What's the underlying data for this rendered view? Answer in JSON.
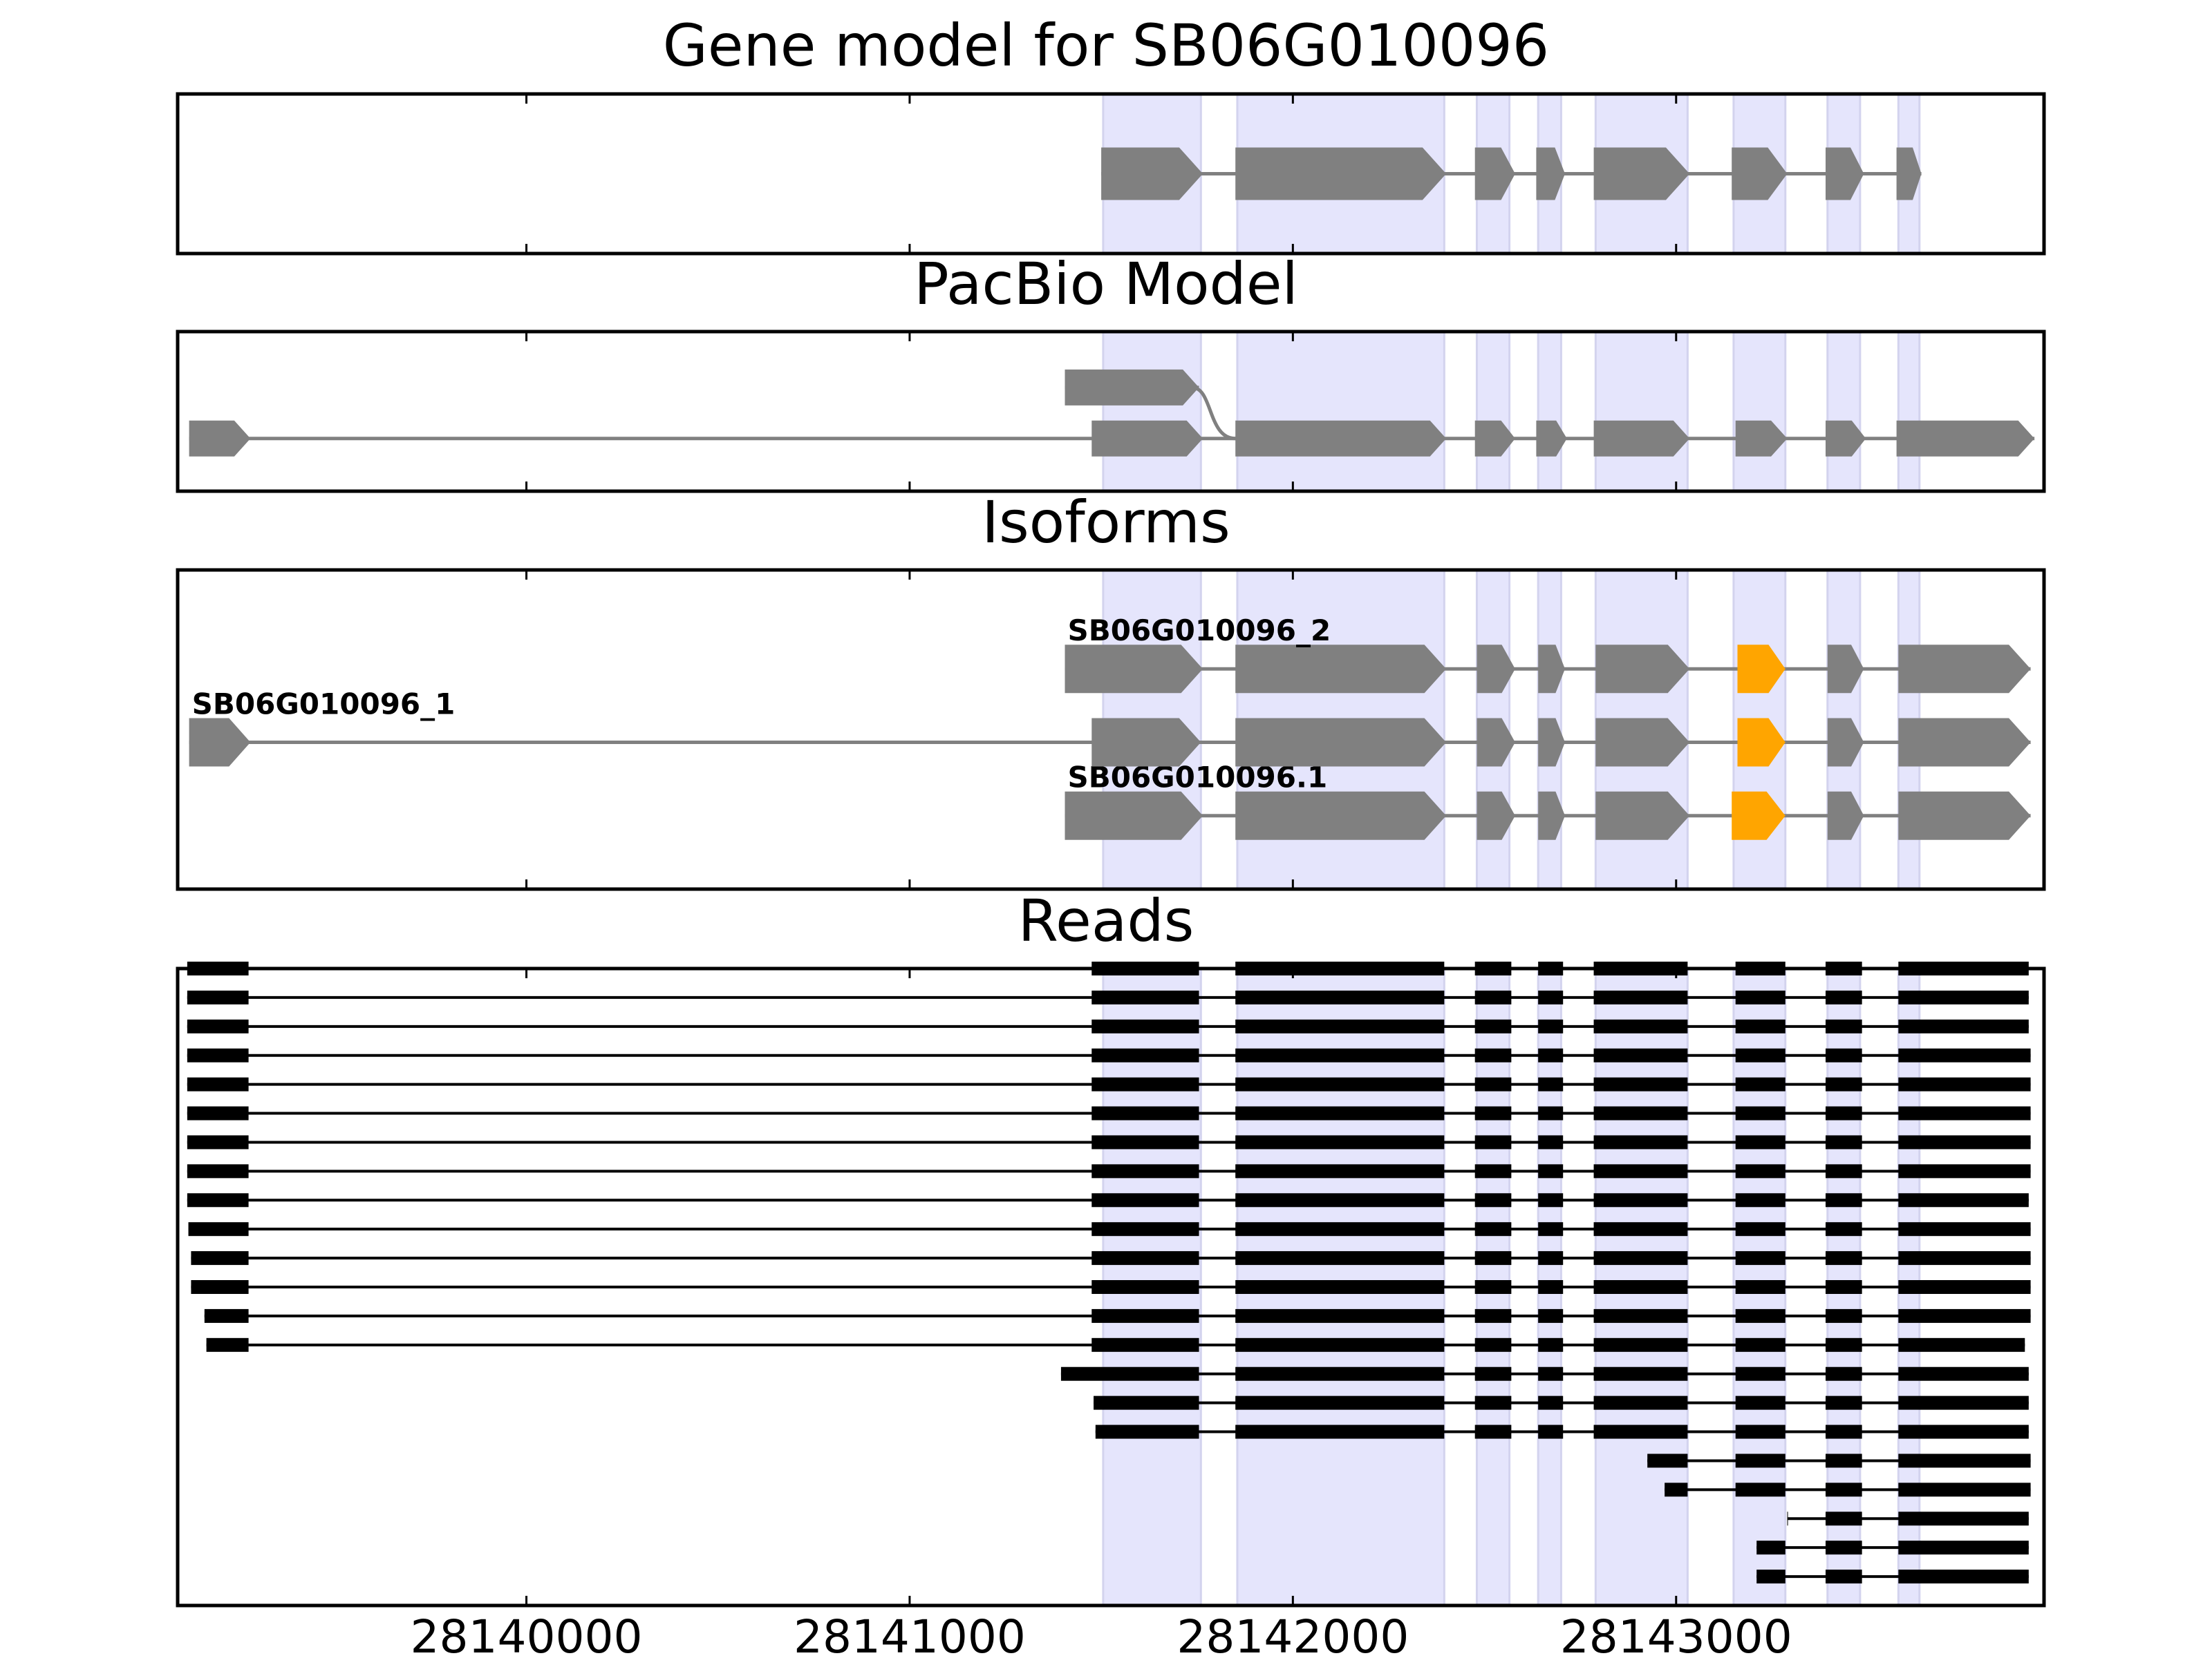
{
  "chart_data": {
    "type": "gene-track",
    "x_axis": {
      "ticks": [
        28140000,
        28141000,
        28142000,
        28143000
      ],
      "tick_labels": [
        "28140000",
        "28141000",
        "28142000",
        "28143000"
      ],
      "xlim": [
        28139090,
        28143960
      ]
    },
    "highlight_regions": [
      [
        28141505,
        28141760
      ],
      [
        28141855,
        28142395
      ],
      [
        28142480,
        28142565
      ],
      [
        28142640,
        28142700
      ],
      [
        28142790,
        28143030
      ],
      [
        28143150,
        28143285
      ],
      [
        28143395,
        28143480
      ],
      [
        28143580,
        28143635
      ]
    ],
    "panels": [
      {
        "title": "Gene model for SB06G010096",
        "y_range": [
          0,
          1
        ],
        "rows": [
          {
            "y": 0.5,
            "color": "#808080",
            "exons": [
              [
                28141500,
                28141765
              ],
              [
                28141850,
                28142400
              ],
              [
                28142475,
                28142580
              ],
              [
                28142635,
                28142710
              ],
              [
                28142785,
                28143035
              ],
              [
                28143145,
                28143290
              ],
              [
                28143390,
                28143490
              ],
              [
                28143575,
                28143640
              ]
            ]
          }
        ]
      },
      {
        "title": "PacBio Model",
        "y_range": [
          0,
          1
        ],
        "rows": [
          {
            "y": 0.33,
            "color": "#808080",
            "exons": [
              [
                28139120,
                28139280
              ],
              [
                28141475,
                28141765
              ],
              [
                28141850,
                28142400
              ],
              [
                28142475,
                28142580
              ],
              [
                28142635,
                28142715
              ],
              [
                28142785,
                28143035
              ],
              [
                28143155,
                28143290
              ],
              [
                28143390,
                28143495
              ],
              [
                28143575,
                28143935
              ]
            ]
          },
          {
            "y": 0.65,
            "color": "#808080",
            "exons": [
              [
                28141405,
                28141755
              ]
            ],
            "join_to": {
              "x": 28141850,
              "y": 0.33
            }
          }
        ]
      },
      {
        "title": "Isoforms",
        "y_range": [
          0,
          1
        ],
        "rows": [
          {
            "y": 0.23,
            "color": "#808080",
            "label": "SB06G010096.1",
            "label_x": 28141405,
            "highlight_exon": 5,
            "exons": [
              [
                28141405,
                28141765
              ],
              [
                28141850,
                28142400
              ],
              [
                28142480,
                28142580
              ],
              [
                28142640,
                28142710
              ],
              [
                28142790,
                28143035
              ],
              [
                28143145,
                28143285
              ],
              [
                28143395,
                28143490
              ],
              [
                28143580,
                28143925
              ]
            ]
          },
          {
            "y": 0.46,
            "color": "#808080",
            "label": "SB06G010096_1",
            "label_x": 28139120,
            "highlight_exon": 6,
            "exons": [
              [
                28139120,
                28139280
              ],
              [
                28141475,
                28141760
              ],
              [
                28141850,
                28142400
              ],
              [
                28142480,
                28142580
              ],
              [
                28142640,
                28142710
              ],
              [
                28142790,
                28143035
              ],
              [
                28143160,
                28143285
              ],
              [
                28143395,
                28143490
              ],
              [
                28143580,
                28143925
              ]
            ]
          },
          {
            "y": 0.69,
            "color": "#808080",
            "label": "SB06G010096_2",
            "label_x": 28141405,
            "highlight_exon": 5,
            "exons": [
              [
                28141405,
                28141765
              ],
              [
                28141850,
                28142400
              ],
              [
                28142480,
                28142580
              ],
              [
                28142640,
                28142710
              ],
              [
                28142790,
                28143035
              ],
              [
                28143160,
                28143285
              ],
              [
                28143395,
                28143490
              ],
              [
                28143580,
                28143925
              ]
            ]
          }
        ],
        "highlight_color": "#FFA500"
      },
      {
        "title": "Reads",
        "y_range": [
          0,
          22
        ],
        "read_color": "#000000",
        "reads": [
          [
            [
              28139115,
              28139275
            ],
            [
              28141475,
              28141755
            ],
            [
              28141850,
              28142395
            ],
            [
              28142475,
              28142570
            ],
            [
              28142640,
              28142705
            ],
            [
              28142785,
              28143030
            ],
            [
              28143155,
              28143285
            ],
            [
              28143390,
              28143485
            ],
            [
              28143580,
              28143920
            ]
          ],
          [
            [
              28139115,
              28139275
            ],
            [
              28141475,
              28141755
            ],
            [
              28141850,
              28142395
            ],
            [
              28142475,
              28142570
            ],
            [
              28142640,
              28142705
            ],
            [
              28142785,
              28143030
            ],
            [
              28143155,
              28143285
            ],
            [
              28143390,
              28143485
            ],
            [
              28143580,
              28143920
            ]
          ],
          [
            [
              28139115,
              28139275
            ],
            [
              28141475,
              28141755
            ],
            [
              28141850,
              28142395
            ],
            [
              28142475,
              28142570
            ],
            [
              28142640,
              28142705
            ],
            [
              28142785,
              28143030
            ],
            [
              28143155,
              28143285
            ],
            [
              28143390,
              28143485
            ],
            [
              28143580,
              28143920
            ]
          ],
          [
            [
              28139115,
              28139275
            ],
            [
              28141475,
              28141755
            ],
            [
              28141850,
              28142395
            ],
            [
              28142475,
              28142570
            ],
            [
              28142640,
              28142705
            ],
            [
              28142785,
              28143030
            ],
            [
              28143155,
              28143285
            ],
            [
              28143390,
              28143485
            ],
            [
              28143580,
              28143925
            ]
          ],
          [
            [
              28139115,
              28139275
            ],
            [
              28141475,
              28141755
            ],
            [
              28141850,
              28142395
            ],
            [
              28142475,
              28142570
            ],
            [
              28142640,
              28142705
            ],
            [
              28142785,
              28143030
            ],
            [
              28143155,
              28143285
            ],
            [
              28143390,
              28143485
            ],
            [
              28143580,
              28143925
            ]
          ],
          [
            [
              28139115,
              28139275
            ],
            [
              28141475,
              28141755
            ],
            [
              28141850,
              28142395
            ],
            [
              28142475,
              28142570
            ],
            [
              28142640,
              28142705
            ],
            [
              28142785,
              28143030
            ],
            [
              28143155,
              28143285
            ],
            [
              28143390,
              28143485
            ],
            [
              28143580,
              28143925
            ]
          ],
          [
            [
              28139115,
              28139275
            ],
            [
              28141475,
              28141755
            ],
            [
              28141850,
              28142395
            ],
            [
              28142475,
              28142570
            ],
            [
              28142640,
              28142705
            ],
            [
              28142785,
              28143030
            ],
            [
              28143155,
              28143285
            ],
            [
              28143390,
              28143485
            ],
            [
              28143580,
              28143925
            ]
          ],
          [
            [
              28139115,
              28139275
            ],
            [
              28141475,
              28141755
            ],
            [
              28141850,
              28142395
            ],
            [
              28142475,
              28142570
            ],
            [
              28142640,
              28142705
            ],
            [
              28142785,
              28143030
            ],
            [
              28143155,
              28143285
            ],
            [
              28143390,
              28143485
            ],
            [
              28143580,
              28143925
            ]
          ],
          [
            [
              28139115,
              28139275
            ],
            [
              28141475,
              28141755
            ],
            [
              28141850,
              28142395
            ],
            [
              28142475,
              28142570
            ],
            [
              28142640,
              28142705
            ],
            [
              28142785,
              28143030
            ],
            [
              28143155,
              28143285
            ],
            [
              28143390,
              28143485
            ],
            [
              28143580,
              28143920
            ]
          ],
          [
            [
              28139118,
              28139275
            ],
            [
              28141475,
              28141755
            ],
            [
              28141850,
              28142395
            ],
            [
              28142475,
              28142570
            ],
            [
              28142640,
              28142705
            ],
            [
              28142785,
              28143030
            ],
            [
              28143155,
              28143285
            ],
            [
              28143390,
              28143485
            ],
            [
              28143580,
              28143925
            ]
          ],
          [
            [
              28139125,
              28139275
            ],
            [
              28141475,
              28141755
            ],
            [
              28141850,
              28142395
            ],
            [
              28142475,
              28142570
            ],
            [
              28142640,
              28142705
            ],
            [
              28142785,
              28143030
            ],
            [
              28143155,
              28143285
            ],
            [
              28143390,
              28143485
            ],
            [
              28143580,
              28143925
            ]
          ],
          [
            [
              28139125,
              28139275
            ],
            [
              28141475,
              28141755
            ],
            [
              28141850,
              28142395
            ],
            [
              28142475,
              28142570
            ],
            [
              28142640,
              28142705
            ],
            [
              28142785,
              28143030
            ],
            [
              28143155,
              28143285
            ],
            [
              28143390,
              28143485
            ],
            [
              28143580,
              28143925
            ]
          ],
          [
            [
              28139160,
              28139275
            ],
            [
              28141475,
              28141755
            ],
            [
              28141850,
              28142395
            ],
            [
              28142475,
              28142570
            ],
            [
              28142640,
              28142705
            ],
            [
              28142785,
              28143030
            ],
            [
              28143155,
              28143285
            ],
            [
              28143390,
              28143485
            ],
            [
              28143580,
              28143925
            ]
          ],
          [
            [
              28139165,
              28139275
            ],
            [
              28141475,
              28141755
            ],
            [
              28141850,
              28142395
            ],
            [
              28142475,
              28142570
            ],
            [
              28142640,
              28142705
            ],
            [
              28142785,
              28143030
            ],
            [
              28143155,
              28143285
            ],
            [
              28143390,
              28143485
            ],
            [
              28143580,
              28143910
            ]
          ],
          [
            [
              28141395,
              28141755
            ],
            [
              28141850,
              28142395
            ],
            [
              28142475,
              28142570
            ],
            [
              28142640,
              28142705
            ],
            [
              28142785,
              28143030
            ],
            [
              28143155,
              28143285
            ],
            [
              28143390,
              28143485
            ],
            [
              28143580,
              28143920
            ]
          ],
          [
            [
              28141480,
              28141755
            ],
            [
              28141850,
              28142395
            ],
            [
              28142475,
              28142570
            ],
            [
              28142640,
              28142705
            ],
            [
              28142785,
              28143030
            ],
            [
              28143155,
              28143285
            ],
            [
              28143390,
              28143485
            ],
            [
              28143580,
              28143920
            ]
          ],
          [
            [
              28141485,
              28141755
            ],
            [
              28141850,
              28142395
            ],
            [
              28142475,
              28142570
            ],
            [
              28142640,
              28142705
            ],
            [
              28142785,
              28143030
            ],
            [
              28143155,
              28143285
            ],
            [
              28143390,
              28143485
            ],
            [
              28143580,
              28143920
            ]
          ],
          [
            [
              28142925,
              28143030
            ],
            [
              28143155,
              28143285
            ],
            [
              28143390,
              28143485
            ],
            [
              28143580,
              28143925
            ]
          ],
          [
            [
              28142970,
              28143030
            ],
            [
              28143155,
              28143285
            ],
            [
              28143390,
              28143485
            ],
            [
              28143580,
              28143925
            ]
          ],
          [
            [
              28143290,
              28143285
            ],
            [
              28143390,
              28143485
            ],
            [
              28143580,
              28143920
            ]
          ],
          [
            [
              28143210,
              28143285
            ],
            [
              28143390,
              28143485
            ],
            [
              28143580,
              28143920
            ]
          ],
          [
            [
              28143210,
              28143285
            ],
            [
              28143390,
              28143485
            ],
            [
              28143580,
              28143920
            ]
          ]
        ]
      }
    ]
  }
}
